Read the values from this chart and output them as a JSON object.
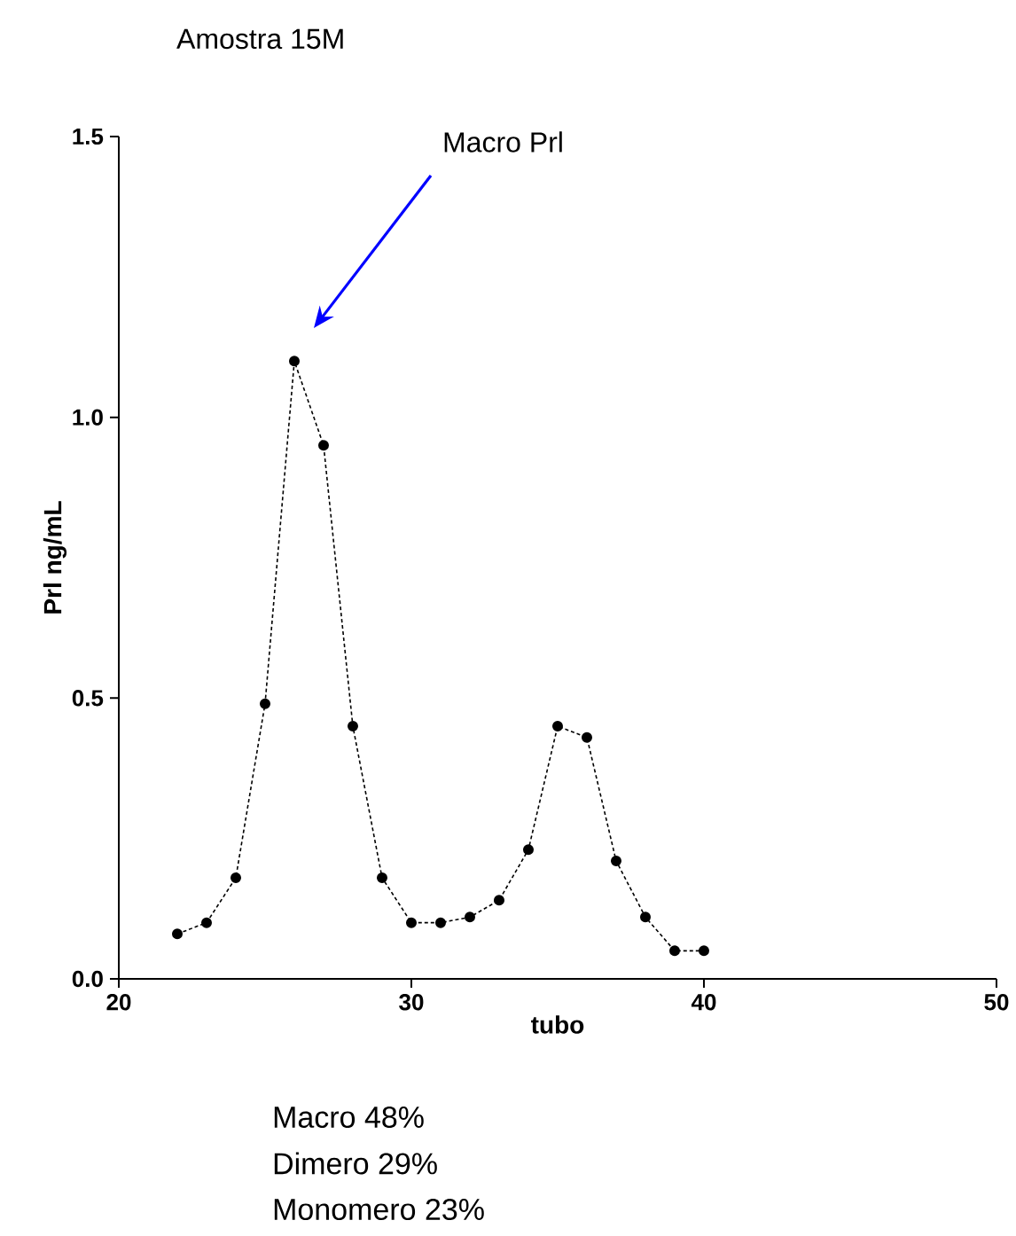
{
  "chart_data": {
    "type": "line",
    "title": "Amostra 15M",
    "xlabel": "tubo",
    "ylabel": "Prl ng/mL",
    "x": [
      22,
      23,
      24,
      25,
      26,
      27,
      28,
      29,
      30,
      31,
      32,
      33,
      34,
      35,
      36,
      37,
      38,
      39,
      40
    ],
    "values": [
      0.08,
      0.1,
      0.18,
      0.49,
      1.1,
      0.95,
      0.45,
      0.18,
      0.1,
      0.1,
      0.11,
      0.14,
      0.23,
      0.45,
      0.43,
      0.21,
      0.11,
      0.05,
      0.05
    ],
    "color": "#000000",
    "marker": "circle",
    "line_style": "dashed",
    "xlim": [
      20,
      50
    ],
    "xticks": [
      20,
      30,
      40,
      50
    ],
    "ylim": [
      0,
      1.5
    ],
    "yticks": [
      {
        "value": 0,
        "label": "0.0"
      },
      {
        "value": 0.5,
        "label": "0.5"
      },
      {
        "value": 1.0,
        "label": "1.0"
      },
      {
        "value": 1.5,
        "label": "1.5"
      }
    ],
    "annotations": [
      "Macro Prl",
      "Macro 48%",
      "Dimero 29%",
      "Monomero 23%"
    ]
  }
}
